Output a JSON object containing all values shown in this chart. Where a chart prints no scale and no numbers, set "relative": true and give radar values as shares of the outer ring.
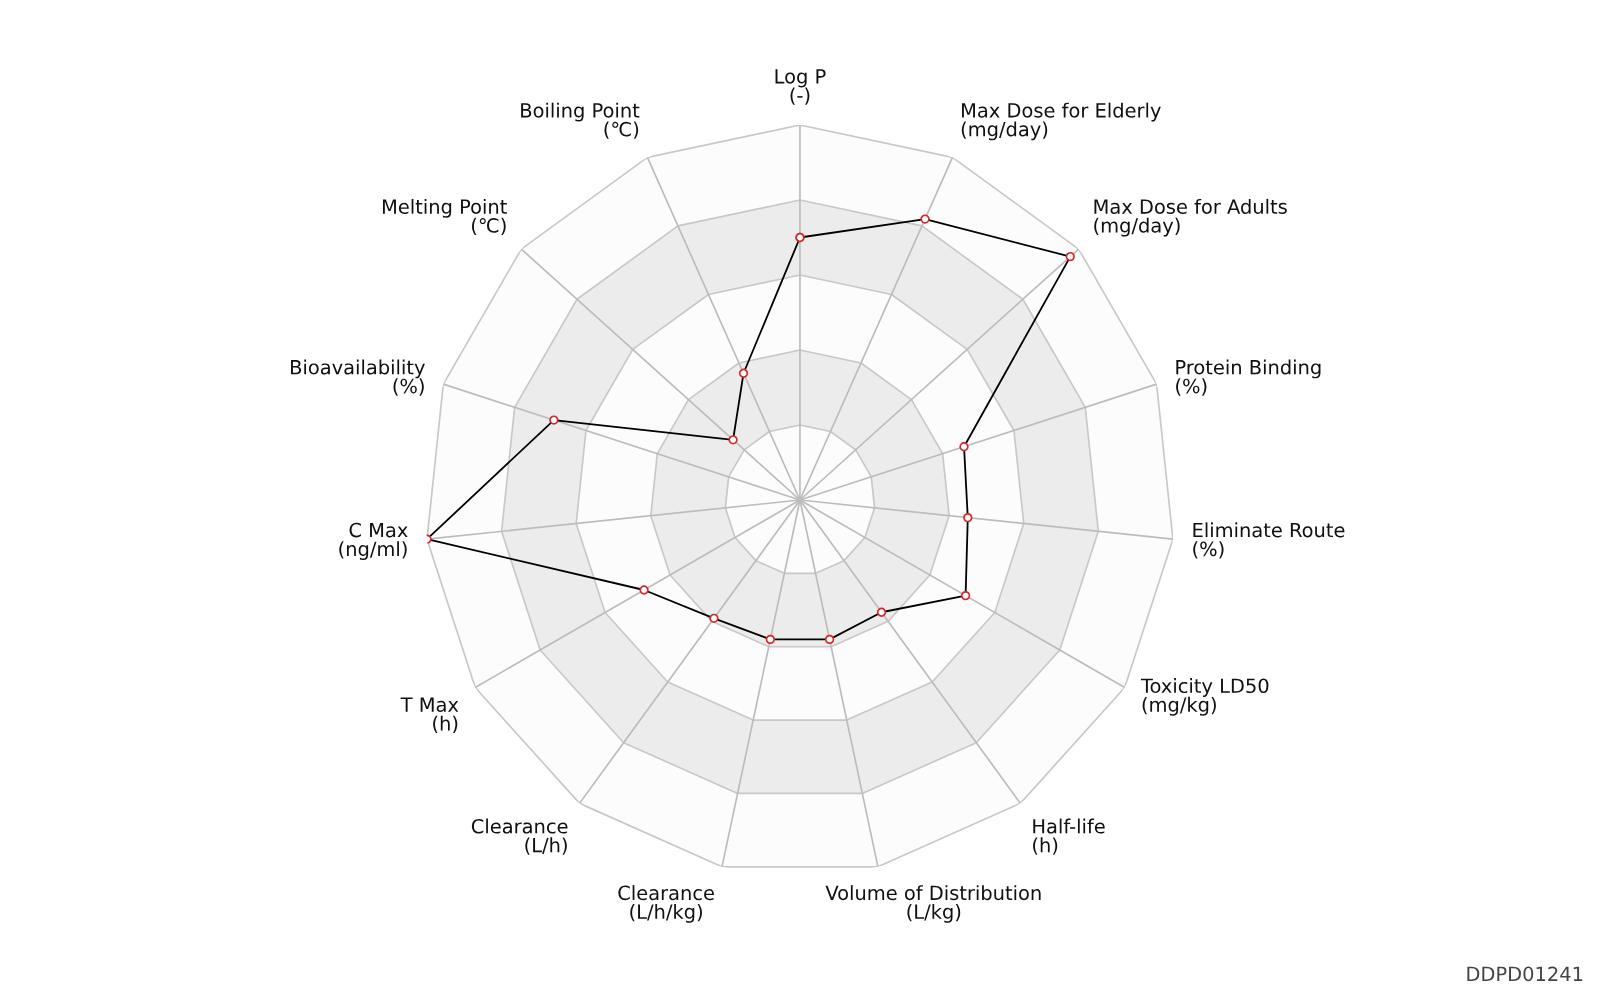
{
  "chart_data": {
    "type": "radar",
    "relative": true,
    "grid": true,
    "marker": "circle",
    "line_style": "solid",
    "categories": [
      "Log P\n(-)",
      "Max Dose for Elderly\n(mg/day)",
      "Max Dose for Adults\n(mg/day)",
      "Protein Binding\n(%)",
      "Eliminate Route\n(%)",
      "Toxicity LD50\n(mg/kg)",
      "Half-life\n(h)",
      "Volume of Distribution\n(L/kg)",
      "Clearance\n(L/h/kg)",
      "Clearance\n(L/h)",
      "T Max\n(h)",
      "C Max\n(ng/ml)",
      "Bioavailability\n(%)",
      "Melting Point\n(℃)",
      "Boiling Point\n(℃)"
    ],
    "series": [
      {
        "color": "#000000",
        "values": [
          0.7,
          0.82,
          0.97,
          0.46,
          0.45,
          0.51,
          0.37,
          0.38,
          0.38,
          0.39,
          0.48,
          1.0,
          0.69,
          0.24,
          0.37
        ]
      }
    ],
    "annotations": [
      "DDPD01241"
    ]
  }
}
